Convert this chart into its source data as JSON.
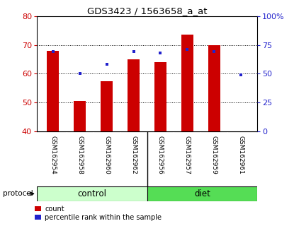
{
  "title": "GDS3423 / 1563658_a_at",
  "samples": [
    "GSM162954",
    "GSM162958",
    "GSM162960",
    "GSM162962",
    "GSM162956",
    "GSM162957",
    "GSM162959",
    "GSM162961"
  ],
  "count_values": [
    68.0,
    50.5,
    57.5,
    65.0,
    64.0,
    73.5,
    70.0,
    40.0
  ],
  "percentile_right": [
    69,
    50,
    58,
    69,
    68,
    71,
    69,
    49
  ],
  "bar_bottom": 40,
  "left_ylim": [
    40,
    80
  ],
  "right_ylim": [
    0,
    100
  ],
  "left_yticks": [
    40,
    50,
    60,
    70,
    80
  ],
  "right_yticks": [
    0,
    25,
    50,
    75,
    100
  ],
  "right_yticklabels": [
    "0",
    "25",
    "50",
    "75",
    "100%"
  ],
  "dotted_lines": [
    50,
    60,
    70
  ],
  "bar_color": "#cc0000",
  "dot_color": "#2222cc",
  "n_control": 4,
  "n_diet": 4,
  "control_color": "#ccffcc",
  "diet_color": "#55dd55",
  "protocol_label": "protocol",
  "control_label": "control",
  "diet_label": "diet",
  "legend_count": "count",
  "legend_percentile": "percentile rank within the sample",
  "tick_color_left": "#cc0000",
  "tick_color_right": "#2222cc",
  "bg_color_xlabels": "#c8c8c8",
  "bar_width": 0.45
}
